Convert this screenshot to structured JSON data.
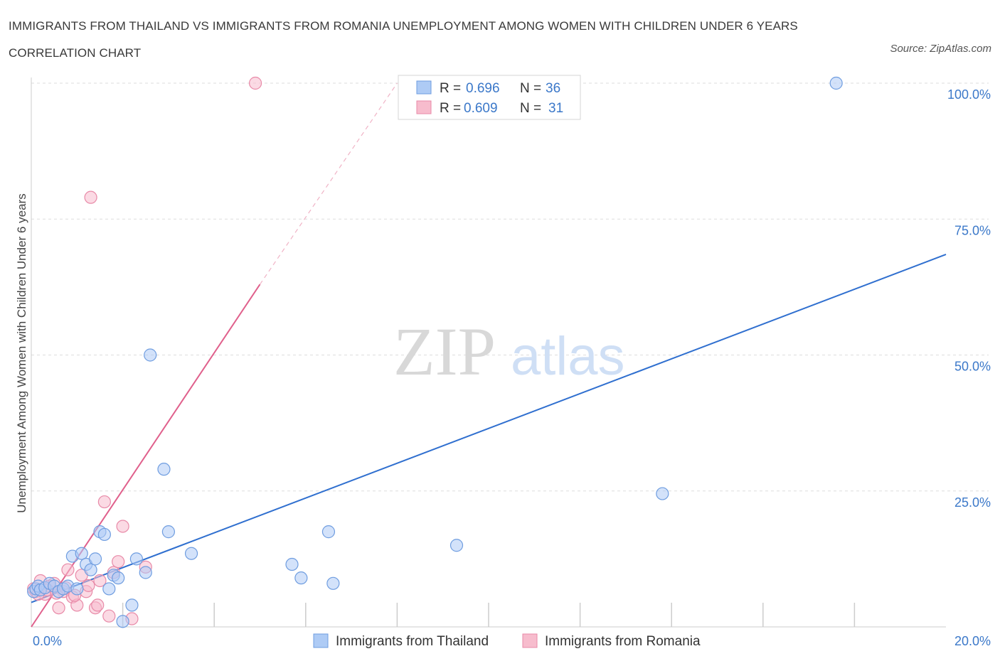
{
  "title": "IMMIGRANTS FROM THAILAND VS IMMIGRANTS FROM ROMANIA UNEMPLOYMENT AMONG WOMEN WITH CHILDREN UNDER 6 YEARS CORRELATION CHART",
  "source": "Source: ZipAtlas.com",
  "watermark": {
    "zip": "ZIP",
    "atlas": "atlas"
  },
  "legend_stats": {
    "thailand": {
      "r_label": "R =",
      "r_value": "0.696",
      "n_label": "N =",
      "n_value": "36"
    },
    "romania": {
      "r_label": "R =",
      "r_value": "0.609",
      "n_label": "N =",
      "n_value": "31"
    }
  },
  "colors": {
    "thailand_fill": "#aecbf5",
    "thailand_stroke": "#6f9de0",
    "thailand_line": "#2f6fcf",
    "romania_fill": "#f7bccd",
    "romania_stroke": "#e88aa8",
    "romania_line": "#e0608c",
    "tick_label": "#3b78c9",
    "grid": "#dddddd"
  },
  "chart_data": {
    "type": "scatter",
    "title": "IMMIGRANTS FROM THAILAND VS IMMIGRANTS FROM ROMANIA UNEMPLOYMENT AMONG WOMEN WITH CHILDREN UNDER 6 YEARS CORRELATION CHART",
    "xlabel": "",
    "ylabel": "Unemployment Among Women with Children Under 6 years",
    "xlim": [
      0,
      20
    ],
    "ylim": [
      0,
      100
    ],
    "x_tick_labels": [
      "0.0%",
      "20.0%"
    ],
    "y_ticks": [
      25,
      50,
      75,
      100
    ],
    "y_tick_labels": [
      "25.0%",
      "50.0%",
      "75.0%",
      "100.0%"
    ],
    "grid": true,
    "legend_position": "bottom",
    "series": [
      {
        "name": "Immigrants from Thailand",
        "points": [
          [
            0.05,
            6.5
          ],
          [
            0.1,
            7.0
          ],
          [
            0.15,
            7.5
          ],
          [
            0.2,
            6.8
          ],
          [
            0.3,
            7.2
          ],
          [
            0.4,
            8.0
          ],
          [
            0.5,
            7.5
          ],
          [
            0.6,
            6.5
          ],
          [
            0.7,
            7.0
          ],
          [
            0.8,
            7.5
          ],
          [
            0.9,
            13.0
          ],
          [
            1.0,
            7.0
          ],
          [
            1.1,
            13.5
          ],
          [
            1.2,
            11.5
          ],
          [
            1.3,
            10.5
          ],
          [
            1.4,
            12.5
          ],
          [
            1.5,
            17.5
          ],
          [
            1.6,
            17.0
          ],
          [
            1.7,
            7.0
          ],
          [
            1.8,
            9.5
          ],
          [
            1.9,
            9.0
          ],
          [
            2.0,
            1.0
          ],
          [
            2.2,
            4.0
          ],
          [
            2.3,
            12.5
          ],
          [
            2.5,
            10.0
          ],
          [
            2.6,
            50.0
          ],
          [
            2.9,
            29.0
          ],
          [
            3.0,
            17.5
          ],
          [
            3.5,
            13.5
          ],
          [
            5.7,
            11.5
          ],
          [
            5.9,
            9.0
          ],
          [
            6.5,
            17.5
          ],
          [
            6.6,
            8.0
          ],
          [
            9.3,
            15.0
          ],
          [
            13.8,
            24.5
          ],
          [
            17.6,
            100.0
          ]
        ],
        "trend": {
          "x": [
            0,
            20
          ],
          "y": [
            4.5,
            68.5
          ]
        }
      },
      {
        "name": "Immigrants from Romania",
        "points": [
          [
            0.05,
            7.0
          ],
          [
            0.1,
            6.5
          ],
          [
            0.2,
            8.5
          ],
          [
            0.3,
            6.0
          ],
          [
            0.4,
            7.5
          ],
          [
            0.5,
            8.0
          ],
          [
            0.6,
            3.5
          ],
          [
            0.7,
            6.5
          ],
          [
            0.8,
            10.5
          ],
          [
            0.9,
            5.5
          ],
          [
            1.0,
            4.0
          ],
          [
            1.1,
            9.5
          ],
          [
            1.2,
            6.5
          ],
          [
            1.3,
            79.0
          ],
          [
            1.4,
            3.5
          ],
          [
            1.45,
            4.0
          ],
          [
            1.5,
            8.5
          ],
          [
            1.6,
            23.0
          ],
          [
            1.7,
            2.0
          ],
          [
            1.8,
            10.0
          ],
          [
            1.9,
            12.0
          ],
          [
            2.0,
            18.5
          ],
          [
            2.2,
            1.5
          ],
          [
            2.5,
            11.0
          ],
          [
            0.35,
            6.8
          ],
          [
            0.55,
            6.2
          ],
          [
            0.75,
            7.2
          ],
          [
            0.95,
            5.8
          ],
          [
            1.25,
            7.6
          ],
          [
            0.15,
            6.0
          ],
          [
            4.9,
            100.0
          ]
        ],
        "trend": {
          "x": [
            0,
            5
          ],
          "y": [
            0,
            63
          ],
          "dashed_to": [
            8,
            100
          ]
        }
      }
    ]
  },
  "bottom_legend": {
    "thailand": "Immigrants from Thailand",
    "romania": "Immigrants from Romania"
  }
}
